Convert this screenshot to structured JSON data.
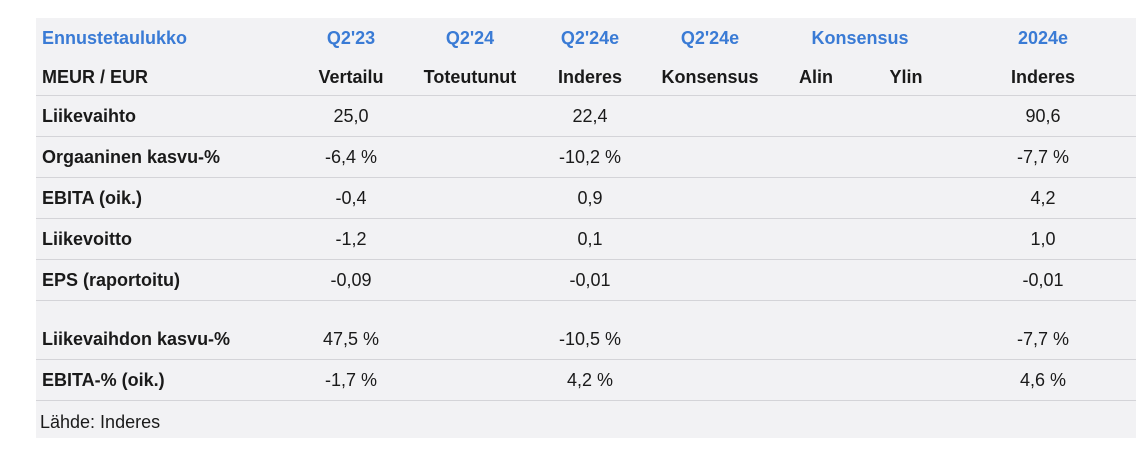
{
  "header": {
    "row1": [
      "Ennustetaulukko",
      "Q2'23",
      "Q2'24",
      "Q2'24e",
      "Q2'24e",
      "Konsensus",
      "",
      "2024e"
    ],
    "row2": [
      "MEUR / EUR",
      "Vertailu",
      "Toteutunut",
      "Inderes",
      "Konsensus",
      "Alin",
      "Ylin",
      "Inderes"
    ]
  },
  "rows_a": [
    {
      "label": "Liikevaihto",
      "q223": "25,0",
      "q224": "",
      "q224e_inderes": "22,4",
      "q224e_konsensus": "",
      "alin": "",
      "ylin": "",
      "e2024": "90,6"
    },
    {
      "label": "Orgaaninen kasvu-%",
      "q223": "-6,4 %",
      "q224": "",
      "q224e_inderes": "-10,2 %",
      "q224e_konsensus": "",
      "alin": "",
      "ylin": "",
      "e2024": "-7,7 %"
    },
    {
      "label": "EBITA (oik.)",
      "q223": "-0,4",
      "q224": "",
      "q224e_inderes": "0,9",
      "q224e_konsensus": "",
      "alin": "",
      "ylin": "",
      "e2024": "4,2"
    },
    {
      "label": "Liikevoitto",
      "q223": "-1,2",
      "q224": "",
      "q224e_inderes": "0,1",
      "q224e_konsensus": "",
      "alin": "",
      "ylin": "",
      "e2024": "1,0"
    },
    {
      "label": "EPS (raportoitu)",
      "q223": "-0,09",
      "q224": "",
      "q224e_inderes": "-0,01",
      "q224e_konsensus": "",
      "alin": "",
      "ylin": "",
      "e2024": "-0,01"
    }
  ],
  "rows_b": [
    {
      "label": "Liikevaihdon kasvu-%",
      "q223": "47,5 %",
      "q224": "",
      "q224e_inderes": "-10,5 %",
      "q224e_konsensus": "",
      "alin": "",
      "ylin": "",
      "e2024": "-7,7 %"
    },
    {
      "label": "EBITA-% (oik.)",
      "q223": "-1,7 %",
      "q224": "",
      "q224e_inderes": "4,2 %",
      "q224e_konsensus": "",
      "alin": "",
      "ylin": "",
      "e2024": "4,6 %"
    }
  ],
  "source": "Lähde: Inderes",
  "colors": {
    "header_accent": "#3a7bd5",
    "panel_bg": "#f2f2f4",
    "divider": "#d4d4d8"
  }
}
